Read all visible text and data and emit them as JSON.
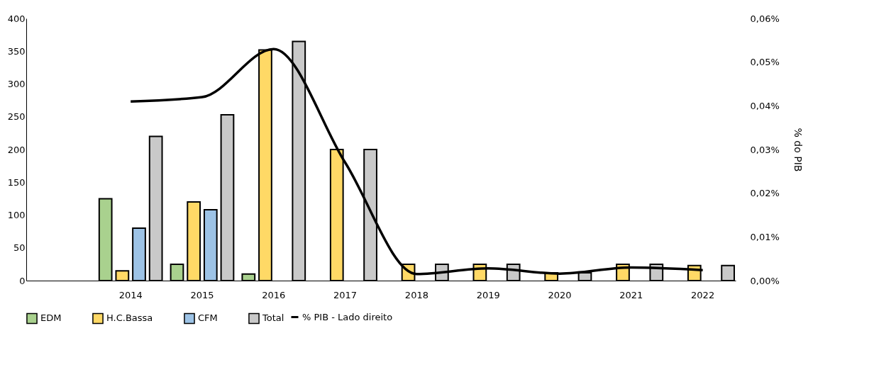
{
  "chart_data": {
    "type": "bar",
    "categories": [
      null,
      "2014",
      "2015",
      "2016",
      "2017",
      "2018",
      "2019",
      "2020",
      "2021",
      "2022"
    ],
    "series": [
      {
        "name": "EDM",
        "color": "#a9d18e",
        "values": [
          null,
          125,
          25,
          10,
          null,
          null,
          null,
          null,
          null,
          null
        ]
      },
      {
        "name": "H.C.Bassa",
        "color": "#ffd966",
        "values": [
          null,
          15,
          120,
          352,
          200,
          25,
          25,
          12,
          25,
          23
        ]
      },
      {
        "name": "CFM",
        "color": "#9dc3e6",
        "values": [
          null,
          80,
          108,
          null,
          null,
          null,
          null,
          null,
          null,
          null
        ]
      },
      {
        "name": "Total",
        "color": "#c9c9c9",
        "values": [
          null,
          220,
          253,
          365,
          200,
          25,
          25,
          12,
          25,
          23
        ]
      },
      {
        "name": "% PIB - Lado direito",
        "type": "line",
        "axis": "y2",
        "color": "#000000",
        "values": [
          null,
          0.041,
          0.042,
          0.053,
          0.027,
          0.0015,
          0.0028,
          0.0016,
          0.003,
          0.0024
        ]
      }
    ],
    "ylim": [
      0,
      400
    ],
    "yticks": [
      0,
      50,
      100,
      150,
      200,
      250,
      300,
      350,
      400
    ],
    "y2label": "% do PIB",
    "y2lim": [
      0,
      0.06
    ],
    "y2ticks": [
      {
        "value": 0,
        "label": "0,00%"
      },
      {
        "value": 0.01,
        "label": "0,01%"
      },
      {
        "value": 0.02,
        "label": "0,02%"
      },
      {
        "value": 0.03,
        "label": "0,03%"
      },
      {
        "value": 0.04,
        "label": "0,04%"
      },
      {
        "value": 0.05,
        "label": "0,05%"
      },
      {
        "value": 0.06,
        "label": "0,06%"
      }
    ],
    "legend": "bottom",
    "grid": false
  }
}
